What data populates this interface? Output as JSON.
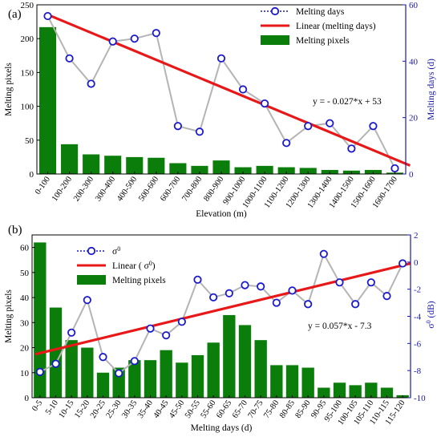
{
  "colors": {
    "bar": "#0a7d0a",
    "line": "#b4b4b4",
    "marker": "#1a1acc",
    "trend": "#e81818",
    "right_axis": "#1a1aa8"
  },
  "chart_data": [
    {
      "type": "bar+line",
      "panel_label": "(a)",
      "categories": [
        "0-100",
        "100-200",
        "200-300",
        "300-400",
        "400-500",
        "500-600",
        "600-700",
        "700-800",
        "800-900",
        "900-1000",
        "1000-1100",
        "1100-1200",
        "1200-1300",
        "1300-1400",
        "1400-1500",
        "1500-1600",
        "1600-1700"
      ],
      "xlabel": "Elevation (m)",
      "ylabel": "Melting pixels",
      "ylabel_right": "Melting days (d)",
      "ylim": [
        0,
        250
      ],
      "yticks": [
        0,
        50,
        100,
        150,
        200,
        250
      ],
      "ylim_right": [
        0,
        60
      ],
      "yticks_right": [
        0,
        20,
        40,
        60
      ],
      "series": [
        {
          "name": "Melting days",
          "axis": "right",
          "kind": "line",
          "values": [
            56,
            41,
            32,
            47,
            48,
            50,
            17,
            15,
            41,
            30,
            25,
            11,
            17,
            18,
            9,
            17,
            2
          ]
        },
        {
          "name": "Melting pixels",
          "axis": "left",
          "kind": "bar",
          "values": [
            217,
            44,
            29,
            27,
            25,
            24,
            16,
            12,
            20,
            10,
            12,
            10,
            9,
            6,
            5,
            6,
            2
          ]
        },
        {
          "name": "Linear (melting days)",
          "axis": "right",
          "kind": "trend",
          "points": [
            [
              0,
              56.5
            ],
            [
              16.7,
              3.0
            ]
          ]
        }
      ],
      "annotation": "y = - 0.027*x + 53",
      "legend": [
        "Melting days",
        "Linear (melting days)",
        "Melting pixels"
      ],
      "legend_position": "top-right",
      "grid": false
    },
    {
      "type": "bar+line",
      "panel_label": "(b)",
      "categories": [
        "0-5",
        "5-10",
        "10-15",
        "15-20",
        "20-25",
        "25-30",
        "30-35",
        "35-40",
        "40-45",
        "45-50",
        "50-55",
        "55-60",
        "60-65",
        "65-70",
        "70-75",
        "75-80",
        "80-85",
        "85-90",
        "90-95",
        "95-100",
        "100-105",
        "105-110",
        "110-115",
        "115-120"
      ],
      "xlabel": "Melting days (d)",
      "ylabel": "Melting pixels",
      "ylabel_right": "dB",
      "ylim": [
        0,
        65
      ],
      "yticks": [
        0,
        10,
        20,
        30,
        40,
        50,
        60
      ],
      "ylim_right": [
        -10,
        2
      ],
      "yticks_right": [
        -10,
        -8,
        -6,
        -4,
        -2,
        0,
        2
      ],
      "series": [
        {
          "name": "σ0",
          "axis": "right",
          "kind": "line",
          "values": [
            -8.1,
            -7.5,
            -5.2,
            -2.8,
            -7.0,
            -8.2,
            -7.3,
            -4.9,
            -5.4,
            -4.4,
            -1.3,
            -2.6,
            -2.3,
            -1.7,
            -1.8,
            -3.0,
            -2.1,
            -3.1,
            0.6,
            -1.5,
            -3.1,
            -1.5,
            -2.5,
            -0.1
          ]
        },
        {
          "name": "Melting pixels",
          "axis": "left",
          "kind": "bar",
          "values": [
            62,
            36,
            23,
            20,
            10,
            12,
            15,
            15,
            19,
            14,
            17,
            22,
            33,
            29,
            23,
            13,
            13,
            12,
            4,
            6,
            5,
            6,
            4,
            1
          ]
        },
        {
          "name": "Linear",
          "axis": "right",
          "kind": "trend",
          "points": [
            [
              -0.3,
              -6.8
            ],
            [
              23.5,
              -0.1
            ]
          ]
        }
      ],
      "annotation": "y = 0.057*x - 7.3",
      "legend": [
        "σ",
        "Linear ( σ",
        "Melting pixels"
      ],
      "legend_sup": "0",
      "legend_position": "top-left",
      "grid": false
    }
  ]
}
